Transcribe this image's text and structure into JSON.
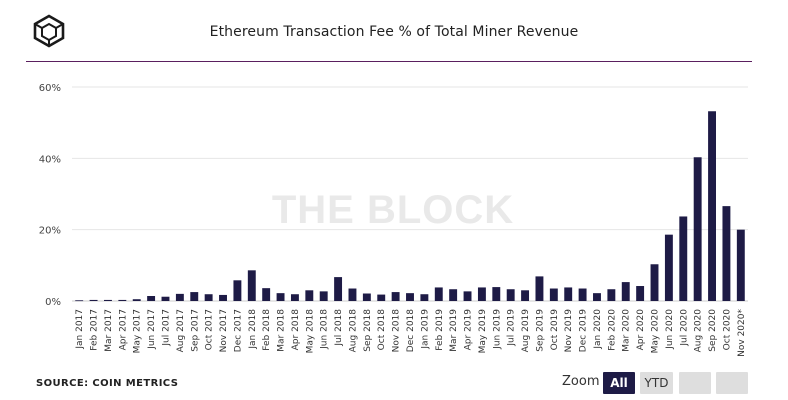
{
  "header": {
    "title": "Ethereum Transaction Fee % of Total Miner Revenue",
    "logo_icon": "the-block-cube-logo"
  },
  "watermark": "THE BLOCK",
  "footer": {
    "source": "SOURCE: COIN METRICS",
    "zoom_label": "Zoom",
    "buttons": {
      "all": "All",
      "ytd": "YTD"
    }
  },
  "colors": {
    "bar": "#1e1b46",
    "accent": "#5a1f5f",
    "grid": "#e6e6e6"
  },
  "chart_data": {
    "type": "bar",
    "title": "Ethereum Transaction Fee % of Total Miner Revenue",
    "xlabel": "",
    "ylabel": "",
    "ylim": [
      0,
      60
    ],
    "y_ticks": [
      0,
      20,
      40,
      60
    ],
    "y_tick_labels": [
      "0%",
      "20%",
      "40%",
      "60%"
    ],
    "grid": "horizontal",
    "categories": [
      "Jan 2017",
      "Feb 2017",
      "Mar 2017",
      "Apr 2017",
      "May 2017",
      "Jun 2017",
      "Jul 2017",
      "Aug 2017",
      "Sep 2017",
      "Oct 2017",
      "Nov 2017",
      "Dec 2017",
      "Jan 2018",
      "Feb 2018",
      "Mar 2018",
      "Apr 2018",
      "May 2018",
      "Jun 2018",
      "Jul 2018",
      "Aug 2018",
      "Sep 2018",
      "Oct 2018",
      "Nov 2018",
      "Dec 2018",
      "Jan 2019",
      "Feb 2019",
      "Mar 2019",
      "Apr 2019",
      "May 2019",
      "Jun 2019",
      "Jul 2019",
      "Aug 2019",
      "Sep 2019",
      "Oct 2019",
      "Nov 2019",
      "Dec 2019",
      "Jan 2020",
      "Feb 2020",
      "Mar 2020",
      "Apr 2020",
      "May 2020",
      "Jun 2020",
      "Jul 2020",
      "Aug 2020",
      "Sep 2020",
      "Oct 2020",
      "Nov 2020*"
    ],
    "values": [
      0.2,
      0.3,
      0.3,
      0.3,
      0.5,
      1.4,
      1.2,
      2.0,
      2.5,
      1.9,
      1.7,
      5.8,
      8.6,
      3.6,
      2.2,
      1.9,
      3.0,
      2.7,
      6.7,
      3.5,
      2.1,
      1.8,
      2.5,
      2.2,
      1.9,
      3.8,
      3.3,
      2.7,
      3.8,
      3.9,
      3.3,
      3.0,
      6.9,
      3.5,
      3.8,
      3.5,
      2.2,
      3.3,
      5.3,
      4.2,
      10.3,
      18.6,
      23.7,
      40.3,
      53.2,
      26.6,
      20.0
    ]
  }
}
